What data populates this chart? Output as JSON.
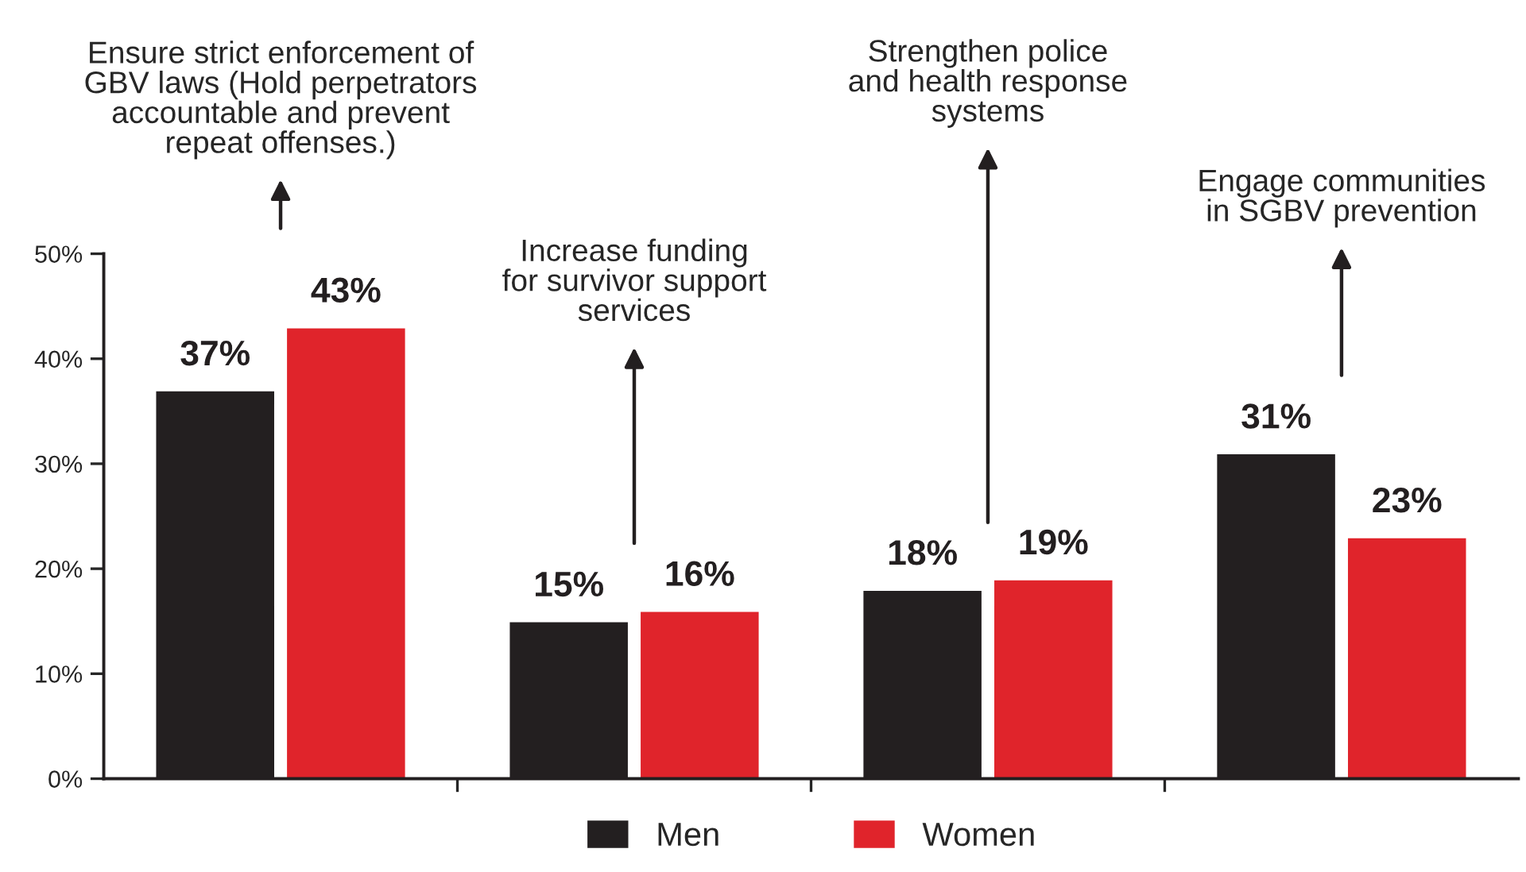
{
  "chart_data": {
    "type": "bar",
    "categories": [
      "Ensure strict enforcement of\nGBV laws (Hold perpetrators\naccountable and prevent\nrepeat offenses.)",
      "Increase funding\nfor survivor support\nservices",
      "Strengthen police\nand health response\nsystems",
      "Engage communities\nin SGBV prevention"
    ],
    "series": [
      {
        "name": "Men",
        "color": "#231f20",
        "values": [
          37,
          15,
          18,
          31
        ],
        "value_labels": [
          "37%",
          "15%",
          "18%",
          "31%"
        ]
      },
      {
        "name": "Women",
        "color": "#e0242b",
        "values": [
          43,
          16,
          19,
          23
        ],
        "value_labels": [
          "43%",
          "16%",
          "19%",
          "23%"
        ]
      }
    ],
    "ylim": [
      0,
      50
    ],
    "yticks": [
      {
        "value": 0,
        "label": "0%"
      },
      {
        "value": 10,
        "label": "10%"
      },
      {
        "value": 20,
        "label": "20%"
      },
      {
        "value": 30,
        "label": "30%"
      },
      {
        "value": 40,
        "label": "40%"
      },
      {
        "value": 50,
        "label": "50%"
      }
    ],
    "grid": false,
    "legend": "bottom"
  }
}
